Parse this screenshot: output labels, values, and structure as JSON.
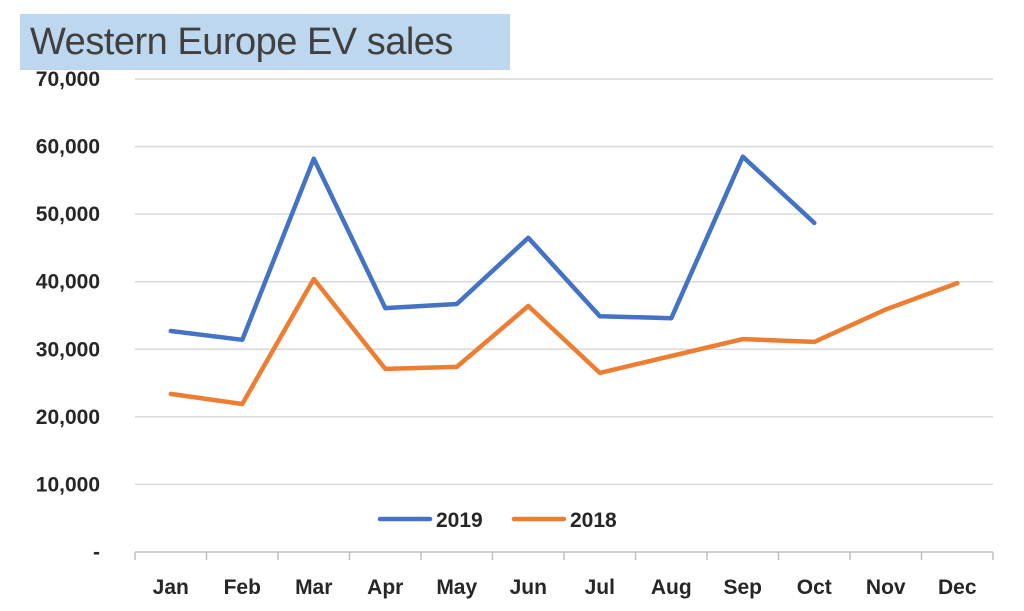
{
  "chart_data": {
    "type": "line",
    "title": "Western Europe EV sales",
    "xlabel": "",
    "ylabel": "",
    "categories": [
      "Jan",
      "Feb",
      "Mar",
      "Apr",
      "May",
      "Jun",
      "Jul",
      "Aug",
      "Sep",
      "Oct",
      "Nov",
      "Dec"
    ],
    "ylim": [
      0,
      70000
    ],
    "yticks": [
      "-",
      "10,000",
      "20,000",
      "30,000",
      "40,000",
      "50,000",
      "60,000",
      "70,000"
    ],
    "grid": true,
    "legend_position": "bottom-center",
    "series": [
      {
        "name": "2019",
        "color": "#4472c4",
        "values": [
          32700,
          31400,
          58200,
          36100,
          36700,
          46500,
          34900,
          34600,
          58500,
          48700,
          null,
          null
        ]
      },
      {
        "name": "2018",
        "color": "#ed7d31",
        "values": [
          23400,
          21900,
          40400,
          27100,
          27400,
          36400,
          26500,
          29000,
          31500,
          31100,
          35900,
          39800
        ]
      }
    ]
  }
}
